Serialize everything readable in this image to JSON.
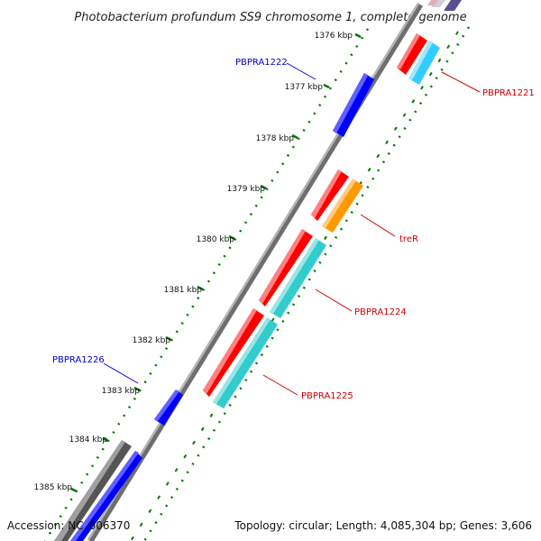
{
  "title": "Photobacterium profundum SS9 chromosome 1, complete genome",
  "footer": {
    "accession": "Accession: NC_006370",
    "topology": "Topology: circular; Length: 4,085,304 bp; Genes: 3,606"
  },
  "ticks": [
    "1376 kbp",
    "1377 kbp",
    "1378 kbp",
    "1379 kbp",
    "1380 kbp",
    "1381 kbp",
    "1382 kbp",
    "1383 kbp",
    "1384 kbp",
    "1385 kbp"
  ],
  "gene_labels": {
    "pbpra1221": "PBPRA1221",
    "pbpra1222": "PBPRA1222",
    "trer": "treR",
    "pbpra1224": "PBPRA1224",
    "pbpra1225": "PBPRA1225",
    "pbpra1226": "PBPRA1226"
  },
  "colors": {
    "reverse_strand_label": "#0000cc",
    "forward_strand_label": "#cc0000",
    "cds_forward": "#ff0000",
    "cds_reverse": "#0000ff",
    "orf": "#33cccc",
    "orange_feature": "#ff9900",
    "backbone": "#888888",
    "dots": "#007700"
  }
}
